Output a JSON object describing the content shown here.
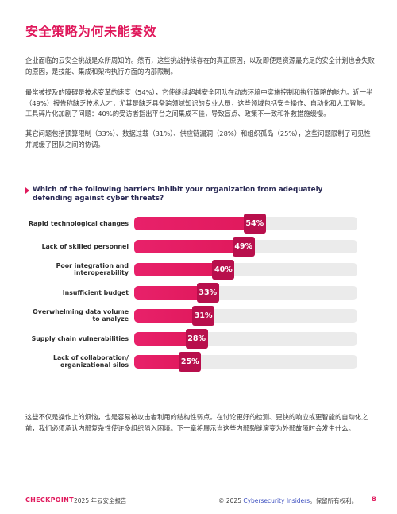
{
  "title": "安全策略为何未能奏效",
  "paragraphs": [
    "企业面临的云安全挑战是众所周知的。然而，这些挑战持续存在的真正原因，以及即便是资源最充足的安全计划也会失败的原因，是技能、集成和架构执行方面的内部限制。",
    "最常被提及的障碍是技术变革的速度（54%），它使继续超越安全团队在动态环境中实施控制和执行策略的能力。近一半（49%）报告称缺乏技术人才，尤其是缺乏具备跨领域知识的专业人员，这些领域包括安全操作、自动化和人工智能。工具碎片化加剧了问题：40%的受访者指出平台之间集成不佳，导致盲点、政策不一致和补救措施缓慢。",
    "其它问题包括预算限制（33%）、数据过载（31%）、供应链漏洞（28%）和组织孤岛（25%），这些问题限制了可见性并减缓了团队之间的协调。"
  ],
  "closing_paragraph": "这些不仅是操作上的烦恼，也是容易被攻击者利用的结构性弱点。在讨论更好的检测、更快的响应或更智能的自动化之前，我们必须承认内部复杂性使许多组织陷入困境。下一章将展示当这些内部裂缝演变为外部故障时会发生什么。",
  "chart_data": {
    "type": "bar",
    "orientation": "horizontal",
    "title": "Which of the following barriers inhibit your organization from adequately defending against cyber threats?",
    "categories": [
      "Rapid technological changes",
      "Lack of skilled personnel",
      "Poor integration and interoperability",
      "Insufficient budget",
      "Overwhelming data volume to analyze",
      "Supply chain vulnerabilities",
      "Lack of collaboration/ organizational silos"
    ],
    "values": [
      54,
      49,
      40,
      33,
      31,
      28,
      25
    ],
    "labels": [
      "54%",
      "49%",
      "40%",
      "33%",
      "31%",
      "28%",
      "25%"
    ],
    "xlim": [
      0,
      100
    ],
    "unit": "%",
    "bar_color": "#e0195c",
    "badge_color": "#b80f4c",
    "track_color": "#ebebeb"
  },
  "footer": {
    "brand": "CHECKPOINT",
    "separator": "|",
    "report": "2025 年云安全报告",
    "copyright_prefix": "© 2025 ",
    "copyright_link": "Cybersecurity Insiders",
    "copyright_suffix": "。保留所有权利。",
    "page_number": "8"
  },
  "colors": {
    "accent": "#e0195c",
    "question_text": "#2b2b55",
    "link": "#3a4dbf"
  }
}
